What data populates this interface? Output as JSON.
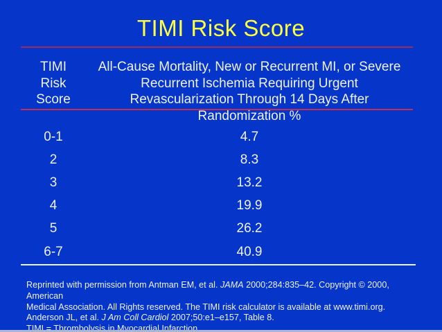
{
  "slide": {
    "title": "TIMI Risk Score",
    "table": {
      "header_left": [
        "TIMI",
        "Risk",
        "Score"
      ],
      "header_right": [
        "All-Cause Mortality, New or Recurrent MI, or Severe",
        "Recurrent Ischemia Requiring Urgent",
        "Revascularization Through 14 Days After",
        "Randomization %"
      ],
      "rows": [
        {
          "score": "0-1",
          "rate": "4.7"
        },
        {
          "score": "2",
          "rate": "8.3"
        },
        {
          "score": "3",
          "rate": "13.2"
        },
        {
          "score": "4",
          "rate": "19.9"
        },
        {
          "score": "5",
          "rate": "26.2"
        },
        {
          "score": "6-7",
          "rate": "40.9"
        }
      ]
    },
    "footnote": {
      "line1": {
        "pre": "Reprinted with permission from Antman EM, et al. ",
        "journal": "JAMA",
        "post": " 2000;284:835–42. Copyright © 2000, American"
      },
      "line2": "Medical Association. All Rights reserved. The TIMI risk calculator is available at www.timi.org.",
      "line3": {
        "pre": "Anderson JL, et al. ",
        "journal": "J Am Coll Cardiol",
        "post": " 2007;50:e1–e157, Table 8."
      },
      "line4": "TIMI = Thrombolysis in Myocardial Infarction."
    },
    "colors": {
      "background": "#0635ca",
      "title_text": "#ffff42",
      "body_text": "#eef2fb",
      "title_rule": "#9e2a5c",
      "header_rule": "#c22f55",
      "bottom_rule": "#eef2fb",
      "bottom_edge_strip": "#a9b5d6"
    }
  }
}
